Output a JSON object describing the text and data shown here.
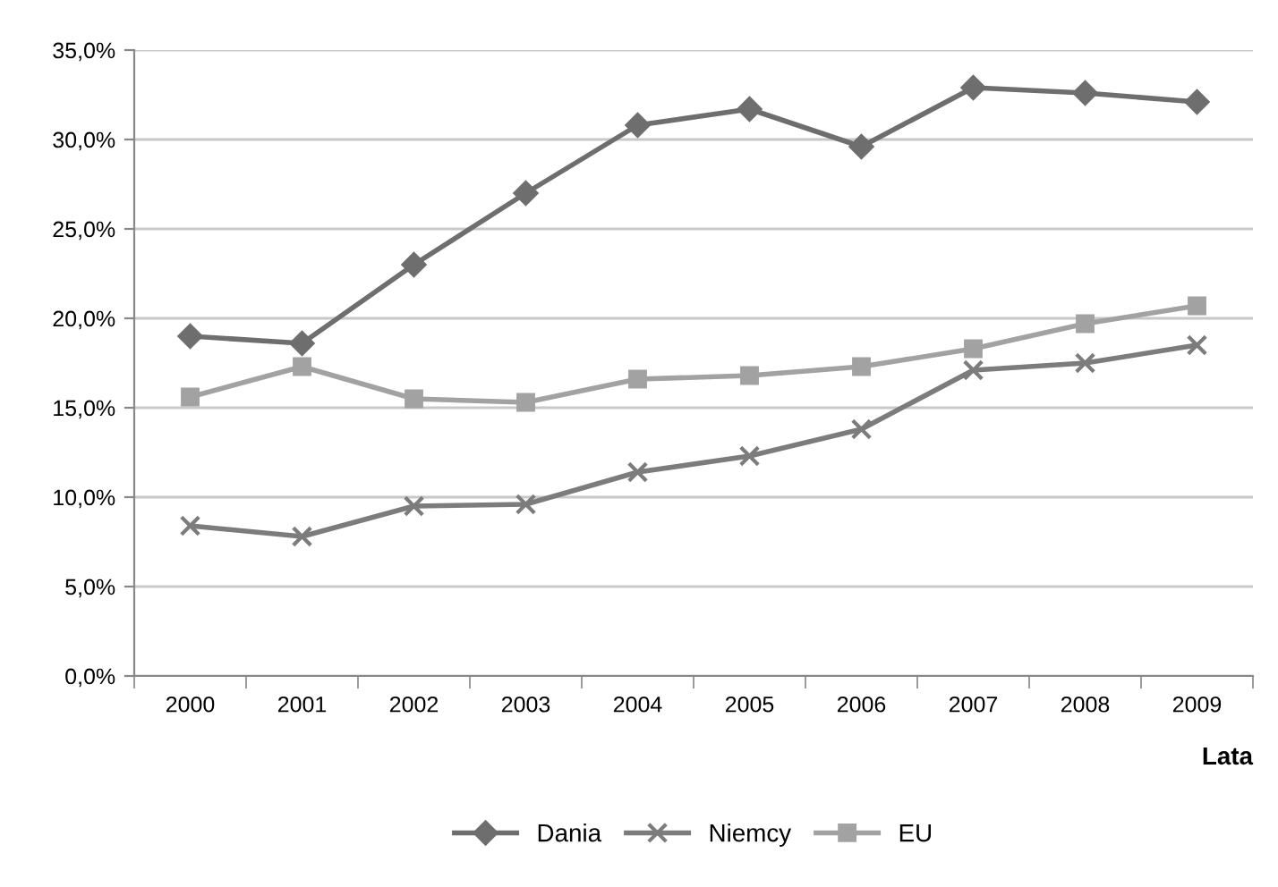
{
  "chart_data": {
    "type": "line",
    "xlabel": "Lata",
    "categories": [
      "2000",
      "2001",
      "2002",
      "2003",
      "2004",
      "2005",
      "2006",
      "2007",
      "2008",
      "2009"
    ],
    "series": [
      {
        "name": "Dania",
        "color": "#6e6e6e",
        "marker": "diamond",
        "values": [
          19.0,
          18.6,
          23.0,
          27.0,
          30.8,
          31.7,
          29.6,
          32.9,
          32.6,
          32.1
        ]
      },
      {
        "name": "Niemcy",
        "color": "#7c7c7c",
        "marker": "cross",
        "values": [
          8.4,
          7.8,
          9.5,
          9.6,
          11.4,
          12.3,
          13.8,
          17.1,
          17.5,
          18.5
        ]
      },
      {
        "name": "EU",
        "color": "#a2a2a2",
        "marker": "square",
        "values": [
          15.6,
          17.3,
          15.5,
          15.3,
          16.6,
          16.8,
          17.3,
          18.3,
          19.7,
          20.7
        ]
      }
    ],
    "ylim": [
      0,
      35
    ],
    "yticks": [
      {
        "value": 0,
        "label": "0,0%"
      },
      {
        "value": 5,
        "label": "5,0%"
      },
      {
        "value": 10,
        "label": "10,0%"
      },
      {
        "value": 15,
        "label": "15,0%"
      },
      {
        "value": 20,
        "label": "20,0%"
      },
      {
        "value": 25,
        "label": "25,0%"
      },
      {
        "value": 30,
        "label": "30,0%"
      },
      {
        "value": 35,
        "label": "35,0%"
      }
    ],
    "grid": "y",
    "legend": "bottom",
    "line_style": "solid"
  }
}
